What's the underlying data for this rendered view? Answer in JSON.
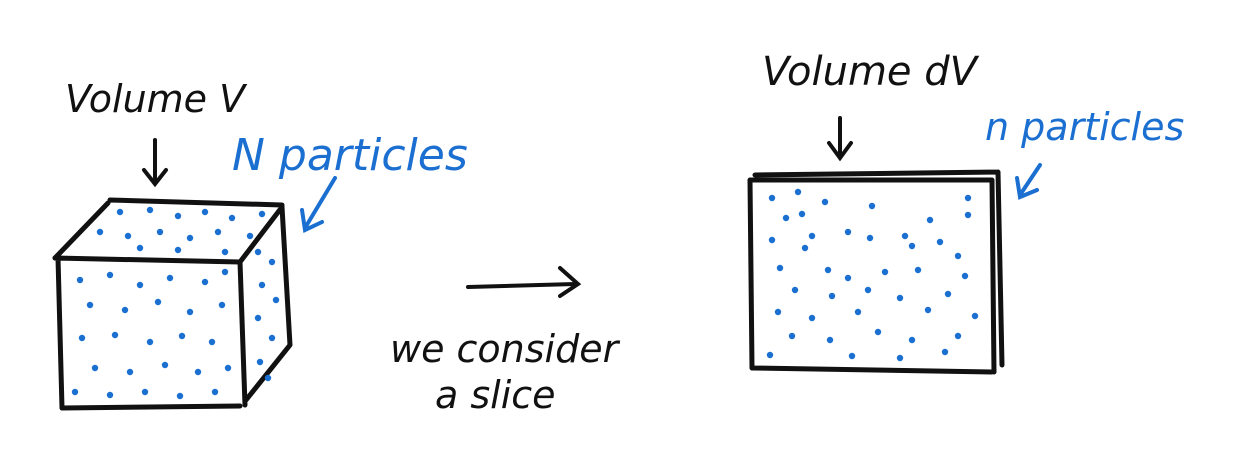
{
  "labels": {
    "volume_v": "Volume V",
    "n_particles": "N particles",
    "volume_dv": "Volume dV",
    "small_n_particles": "n particles",
    "transition_line1": "we consider",
    "transition_line2": "a slice"
  },
  "colors": {
    "ink": "#111111",
    "particles": "#1a6fd1"
  }
}
